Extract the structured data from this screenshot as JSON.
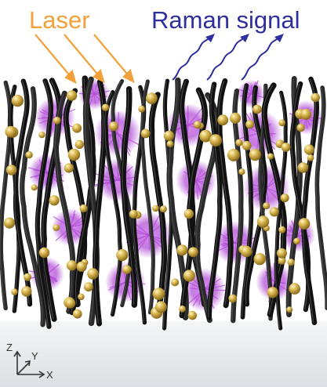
{
  "labels": {
    "laser": "Laser",
    "raman": "Raman signal"
  },
  "axes": {
    "z": "Z",
    "y": "Y",
    "x": "X"
  },
  "colors": {
    "laser": "#f2a03a",
    "raman": "#2e2f9c",
    "nanowire": "#1b1b1b",
    "nanoparticle": "#d8b650",
    "molecule_cluster": "#b24fd6",
    "substrate": "#e8eaeb"
  }
}
